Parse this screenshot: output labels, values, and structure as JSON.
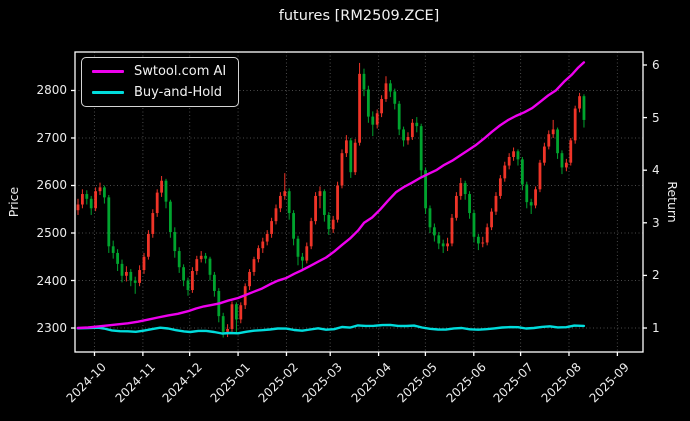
{
  "title": "futures [RM2509.ZCE]",
  "legend": [
    {
      "label": "Swtool.com AI",
      "color": "#ee00ee"
    },
    {
      "label": "Buy-and-Hold",
      "color": "#00dcdc"
    }
  ],
  "colors": {
    "background": "#000000",
    "up_candle": "#ef3428",
    "down_candle": "#00a42e",
    "grid": "#4a4a4a",
    "spine": "#ffffff",
    "text": "#ececec",
    "ai_line": "#ee00ee",
    "bh_line": "#00dcdc"
  },
  "axes": {
    "price": {
      "label": "Price",
      "min": 2249.5,
      "max": 2881,
      "ticks": [
        2300,
        2400,
        2500,
        2600,
        2700,
        2800
      ]
    },
    "return": {
      "label": "Return",
      "min": 0.544,
      "max": 6.247,
      "ticks": [
        1,
        2,
        3,
        4,
        5,
        6
      ]
    },
    "x": {
      "ticks": [
        {
          "label": "2024-10",
          "f": 0.0343
        },
        {
          "label": "2024-11",
          "f": 0.1195
        },
        {
          "label": "2024-12",
          "f": 0.2019
        },
        {
          "label": "2025-01",
          "f": 0.2871
        },
        {
          "label": "2025-02",
          "f": 0.3723
        },
        {
          "label": "2025-03",
          "f": 0.4493
        },
        {
          "label": "2025-04",
          "f": 0.5345
        },
        {
          "label": "2025-05",
          "f": 0.6169
        },
        {
          "label": "2025-06",
          "f": 0.7021
        },
        {
          "label": "2025-07",
          "f": 0.7845
        },
        {
          "label": "2025-08",
          "f": 0.8697
        },
        {
          "label": "2025-09",
          "f": 0.9549
        }
      ]
    }
  },
  "chart_data": {
    "type": "candlestick+lines",
    "title": "futures [RM2509.ZCE]",
    "x_axis": "dates 2024-09 to 2025-08, month ticks 2024-10 through 2025-09",
    "price_axis_range": [
      2249.5,
      2881
    ],
    "return_axis_range": [
      0.544,
      6.247
    ],
    "x_start_frac": 0.00528,
    "x_step_frac": 0.007746,
    "candles_ohlc": [
      [
        2548,
        2572,
        2538,
        2560
      ],
      [
        2560,
        2592,
        2552,
        2582
      ],
      [
        2582,
        2590,
        2560,
        2572
      ],
      [
        2572,
        2578,
        2538,
        2552
      ],
      [
        2552,
        2596,
        2546,
        2588
      ],
      [
        2588,
        2606,
        2580,
        2596
      ],
      [
        2596,
        2600,
        2562,
        2575
      ],
      [
        2575,
        2580,
        2458,
        2472
      ],
      [
        2472,
        2484,
        2446,
        2458
      ],
      [
        2458,
        2466,
        2420,
        2435
      ],
      [
        2435,
        2444,
        2396,
        2410
      ],
      [
        2410,
        2430,
        2398,
        2418
      ],
      [
        2418,
        2424,
        2388,
        2400
      ],
      [
        2400,
        2408,
        2372,
        2395
      ],
      [
        2395,
        2432,
        2388,
        2422
      ],
      [
        2422,
        2458,
        2414,
        2450
      ],
      [
        2450,
        2506,
        2444,
        2498
      ],
      [
        2498,
        2550,
        2490,
        2542
      ],
      [
        2542,
        2592,
        2534,
        2585
      ],
      [
        2585,
        2620,
        2576,
        2610
      ],
      [
        2610,
        2614,
        2552,
        2566
      ],
      [
        2566,
        2570,
        2490,
        2502
      ],
      [
        2502,
        2512,
        2448,
        2462
      ],
      [
        2462,
        2470,
        2416,
        2428
      ],
      [
        2428,
        2434,
        2388,
        2400
      ],
      [
        2400,
        2406,
        2368,
        2380
      ],
      [
        2380,
        2428,
        2374,
        2420
      ],
      [
        2420,
        2452,
        2412,
        2445
      ],
      [
        2445,
        2462,
        2438,
        2452
      ],
      [
        2452,
        2458,
        2436,
        2446
      ],
      [
        2446,
        2450,
        2400,
        2412
      ],
      [
        2412,
        2418,
        2366,
        2378
      ],
      [
        2378,
        2384,
        2312,
        2325
      ],
      [
        2325,
        2332,
        2280,
        2292
      ],
      [
        2292,
        2308,
        2281,
        2298
      ],
      [
        2298,
        2356,
        2292,
        2350
      ],
      [
        2350,
        2354,
        2288,
        2318
      ],
      [
        2318,
        2354,
        2310,
        2348
      ],
      [
        2348,
        2394,
        2340,
        2388
      ],
      [
        2388,
        2424,
        2380,
        2418
      ],
      [
        2418,
        2450,
        2410,
        2445
      ],
      [
        2445,
        2474,
        2438,
        2468
      ],
      [
        2468,
        2490,
        2458,
        2482
      ],
      [
        2482,
        2506,
        2474,
        2498
      ],
      [
        2498,
        2532,
        2490,
        2525
      ],
      [
        2525,
        2560,
        2518,
        2552
      ],
      [
        2552,
        2586,
        2544,
        2578
      ],
      [
        2578,
        2626,
        2570,
        2588
      ],
      [
        2588,
        2594,
        2528,
        2542
      ],
      [
        2542,
        2548,
        2474,
        2488
      ],
      [
        2488,
        2494,
        2432,
        2450
      ],
      [
        2450,
        2458,
        2420,
        2442
      ],
      [
        2442,
        2480,
        2436,
        2472
      ],
      [
        2472,
        2532,
        2466,
        2525
      ],
      [
        2525,
        2586,
        2518,
        2578
      ],
      [
        2578,
        2598,
        2552,
        2588
      ],
      [
        2588,
        2592,
        2524,
        2538
      ],
      [
        2538,
        2544,
        2496,
        2508
      ],
      [
        2508,
        2536,
        2500,
        2528
      ],
      [
        2528,
        2608,
        2522,
        2600
      ],
      [
        2600,
        2676,
        2594,
        2668
      ],
      [
        2668,
        2706,
        2660,
        2695
      ],
      [
        2695,
        2700,
        2616,
        2628
      ],
      [
        2628,
        2698,
        2622,
        2690
      ],
      [
        2690,
        2858,
        2684,
        2835
      ],
      [
        2835,
        2846,
        2788,
        2802
      ],
      [
        2802,
        2810,
        2732,
        2745
      ],
      [
        2745,
        2756,
        2704,
        2728
      ],
      [
        2728,
        2760,
        2720,
        2752
      ],
      [
        2752,
        2790,
        2744,
        2782
      ],
      [
        2782,
        2830,
        2776,
        2815
      ],
      [
        2815,
        2822,
        2786,
        2798
      ],
      [
        2798,
        2804,
        2760,
        2772
      ],
      [
        2772,
        2778,
        2706,
        2718
      ],
      [
        2718,
        2724,
        2682,
        2695
      ],
      [
        2695,
        2712,
        2686,
        2702
      ],
      [
        2702,
        2740,
        2696,
        2732
      ],
      [
        2732,
        2744,
        2712,
        2725
      ],
      [
        2725,
        2730,
        2618,
        2632
      ],
      [
        2632,
        2638,
        2540,
        2552
      ],
      [
        2552,
        2558,
        2500,
        2512
      ],
      [
        2512,
        2520,
        2482,
        2495
      ],
      [
        2495,
        2502,
        2466,
        2478
      ],
      [
        2478,
        2486,
        2458,
        2472
      ],
      [
        2472,
        2490,
        2462,
        2478
      ],
      [
        2478,
        2540,
        2472,
        2532
      ],
      [
        2532,
        2586,
        2526,
        2578
      ],
      [
        2578,
        2616,
        2570,
        2605
      ],
      [
        2605,
        2610,
        2570,
        2582
      ],
      [
        2582,
        2588,
        2530,
        2542
      ],
      [
        2542,
        2548,
        2480,
        2492
      ],
      [
        2492,
        2498,
        2464,
        2478
      ],
      [
        2478,
        2492,
        2470,
        2480
      ],
      [
        2480,
        2520,
        2474,
        2512
      ],
      [
        2512,
        2552,
        2506,
        2545
      ],
      [
        2545,
        2586,
        2538,
        2578
      ],
      [
        2578,
        2622,
        2572,
        2615
      ],
      [
        2615,
        2650,
        2608,
        2642
      ],
      [
        2642,
        2668,
        2634,
        2660
      ],
      [
        2660,
        2680,
        2652,
        2672
      ],
      [
        2672,
        2676,
        2642,
        2655
      ],
      [
        2655,
        2660,
        2590,
        2602
      ],
      [
        2602,
        2608,
        2552,
        2565
      ],
      [
        2565,
        2572,
        2540,
        2558
      ],
      [
        2558,
        2598,
        2552,
        2592
      ],
      [
        2592,
        2654,
        2586,
        2648
      ],
      [
        2648,
        2690,
        2642,
        2682
      ],
      [
        2682,
        2716,
        2676,
        2708
      ],
      [
        2708,
        2738,
        2700,
        2718
      ],
      [
        2718,
        2722,
        2656,
        2668
      ],
      [
        2668,
        2674,
        2624,
        2638
      ],
      [
        2638,
        2656,
        2630,
        2648
      ],
      [
        2648,
        2700,
        2642,
        2695
      ],
      [
        2695,
        2768,
        2688,
        2762
      ],
      [
        2762,
        2795,
        2754,
        2788
      ],
      [
        2788,
        2792,
        2722,
        2738
      ]
    ],
    "series": [
      {
        "name": "Swtool.com AI",
        "axis": "return",
        "points": [
          [
            0.005,
            1.0
          ],
          [
            0.023,
            1.01
          ],
          [
            0.041,
            1.03
          ],
          [
            0.058,
            1.05
          ],
          [
            0.076,
            1.07
          ],
          [
            0.093,
            1.09
          ],
          [
            0.111,
            1.12
          ],
          [
            0.129,
            1.16
          ],
          [
            0.146,
            1.2
          ],
          [
            0.164,
            1.24
          ],
          [
            0.181,
            1.27
          ],
          [
            0.199,
            1.32
          ],
          [
            0.213,
            1.37
          ],
          [
            0.227,
            1.41
          ],
          [
            0.241,
            1.44
          ],
          [
            0.255,
            1.47
          ],
          [
            0.269,
            1.52
          ],
          [
            0.287,
            1.57
          ],
          [
            0.301,
            1.63
          ],
          [
            0.315,
            1.69
          ],
          [
            0.329,
            1.75
          ],
          [
            0.343,
            1.83
          ],
          [
            0.357,
            1.9
          ],
          [
            0.372,
            1.95
          ],
          [
            0.386,
            2.03
          ],
          [
            0.4,
            2.1
          ],
          [
            0.414,
            2.18
          ],
          [
            0.428,
            2.26
          ],
          [
            0.442,
            2.34
          ],
          [
            0.456,
            2.45
          ],
          [
            0.47,
            2.58
          ],
          [
            0.484,
            2.7
          ],
          [
            0.498,
            2.85
          ],
          [
            0.509,
            3.0
          ],
          [
            0.523,
            3.1
          ],
          [
            0.537,
            3.25
          ],
          [
            0.551,
            3.42
          ],
          [
            0.565,
            3.58
          ],
          [
            0.579,
            3.68
          ],
          [
            0.593,
            3.76
          ],
          [
            0.607,
            3.85
          ],
          [
            0.622,
            3.93
          ],
          [
            0.636,
            4.0
          ],
          [
            0.65,
            4.1
          ],
          [
            0.664,
            4.18
          ],
          [
            0.678,
            4.28
          ],
          [
            0.692,
            4.38
          ],
          [
            0.706,
            4.48
          ],
          [
            0.72,
            4.6
          ],
          [
            0.734,
            4.73
          ],
          [
            0.748,
            4.85
          ],
          [
            0.762,
            4.95
          ],
          [
            0.776,
            5.03
          ],
          [
            0.791,
            5.1
          ],
          [
            0.805,
            5.18
          ],
          [
            0.819,
            5.3
          ],
          [
            0.833,
            5.42
          ],
          [
            0.847,
            5.52
          ],
          [
            0.861,
            5.68
          ],
          [
            0.875,
            5.82
          ],
          [
            0.886,
            5.95
          ],
          [
            0.896,
            6.05
          ]
        ]
      },
      {
        "name": "Buy-and-Hold",
        "axis": "return",
        "points": [
          [
            0.005,
            0.995
          ],
          [
            0.023,
            1.0
          ],
          [
            0.041,
            1.005
          ],
          [
            0.051,
            0.99
          ],
          [
            0.065,
            0.955
          ],
          [
            0.079,
            0.94
          ],
          [
            0.093,
            0.938
          ],
          [
            0.107,
            0.928
          ],
          [
            0.122,
            0.95
          ],
          [
            0.136,
            0.98
          ],
          [
            0.15,
            1.005
          ],
          [
            0.164,
            0.99
          ],
          [
            0.178,
            0.958
          ],
          [
            0.192,
            0.935
          ],
          [
            0.203,
            0.925
          ],
          [
            0.217,
            0.945
          ],
          [
            0.231,
            0.945
          ],
          [
            0.245,
            0.925
          ],
          [
            0.259,
            0.895
          ],
          [
            0.273,
            0.905
          ],
          [
            0.287,
            0.9
          ],
          [
            0.301,
            0.928
          ],
          [
            0.315,
            0.948
          ],
          [
            0.329,
            0.958
          ],
          [
            0.343,
            0.972
          ],
          [
            0.357,
            0.99
          ],
          [
            0.372,
            0.988
          ],
          [
            0.386,
            0.962
          ],
          [
            0.4,
            0.948
          ],
          [
            0.414,
            0.972
          ],
          [
            0.428,
            0.995
          ],
          [
            0.442,
            0.968
          ],
          [
            0.456,
            0.978
          ],
          [
            0.47,
            1.02
          ],
          [
            0.484,
            1.008
          ],
          [
            0.498,
            1.05
          ],
          [
            0.512,
            1.04
          ],
          [
            0.526,
            1.042
          ],
          [
            0.541,
            1.055
          ],
          [
            0.555,
            1.06
          ],
          [
            0.569,
            1.04
          ],
          [
            0.583,
            1.038
          ],
          [
            0.597,
            1.045
          ],
          [
            0.611,
            1.01
          ],
          [
            0.625,
            0.985
          ],
          [
            0.639,
            0.972
          ],
          [
            0.653,
            0.97
          ],
          [
            0.667,
            0.992
          ],
          [
            0.681,
            1.0
          ],
          [
            0.695,
            0.975
          ],
          [
            0.71,
            0.968
          ],
          [
            0.724,
            0.978
          ],
          [
            0.738,
            0.992
          ],
          [
            0.752,
            1.01
          ],
          [
            0.766,
            1.018
          ],
          [
            0.78,
            1.015
          ],
          [
            0.794,
            0.99
          ],
          [
            0.808,
            1.0
          ],
          [
            0.822,
            1.022
          ],
          [
            0.836,
            1.032
          ],
          [
            0.85,
            1.012
          ],
          [
            0.865,
            1.015
          ],
          [
            0.879,
            1.045
          ],
          [
            0.896,
            1.04
          ]
        ]
      }
    ]
  }
}
